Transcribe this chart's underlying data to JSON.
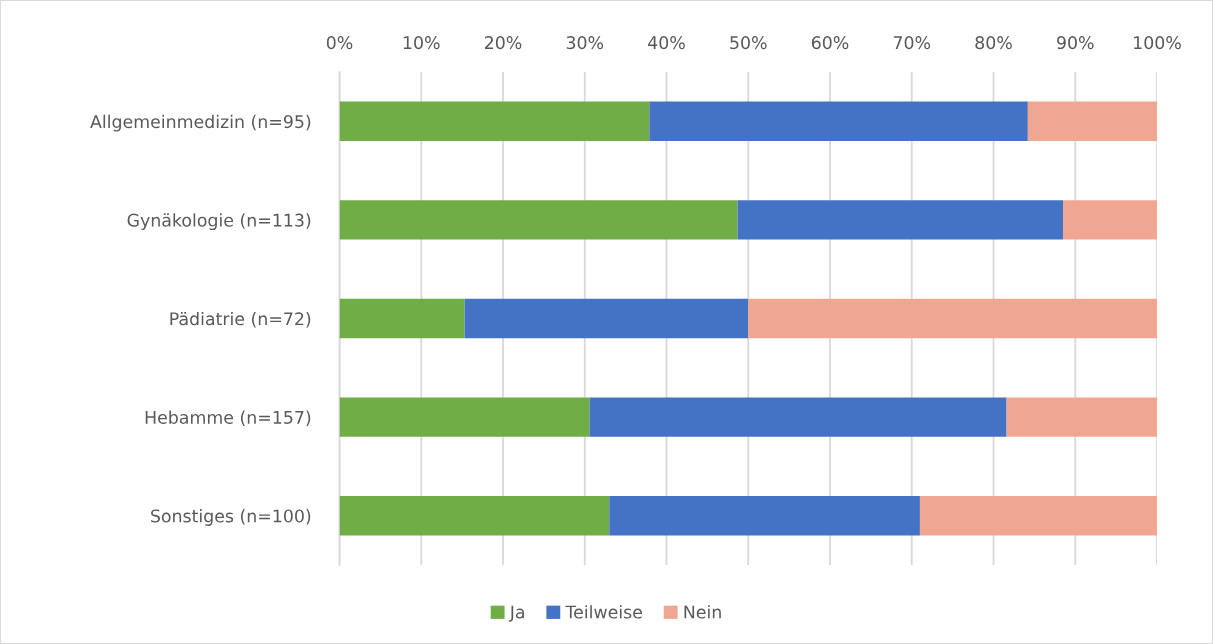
{
  "chart_data": {
    "type": "bar",
    "orientation": "horizontal",
    "stacked": true,
    "categories": [
      "Allgemeinmedizin (n=95)",
      "Gynäkologie (n=113)",
      "Pädiatrie (n=72)",
      "Hebamme (n=157)",
      "Sonstiges (n=100)"
    ],
    "series": [
      {
        "name": "Ja",
        "color": "#70ad47",
        "values": [
          37.9,
          48.7,
          15.3,
          30.6,
          33.0
        ]
      },
      {
        "name": "Teilweise",
        "color": "#4472c4",
        "values": [
          46.3,
          39.8,
          34.7,
          51.0,
          38.0
        ]
      },
      {
        "name": "Nein",
        "color": "#f0a792",
        "values": [
          15.8,
          11.5,
          50.0,
          18.5,
          29.0
        ]
      }
    ],
    "xlim": [
      0,
      100
    ],
    "xticks": [
      {
        "value": 0,
        "label": "0%"
      },
      {
        "value": 10,
        "label": "10%"
      },
      {
        "value": 20,
        "label": "20%"
      },
      {
        "value": 30,
        "label": "30%"
      },
      {
        "value": 40,
        "label": "40%"
      },
      {
        "value": 50,
        "label": "50%"
      },
      {
        "value": 60,
        "label": "60%"
      },
      {
        "value": 70,
        "label": "70%"
      },
      {
        "value": 80,
        "label": "80%"
      },
      {
        "value": 90,
        "label": "90%"
      },
      {
        "value": 100,
        "label": "100%"
      }
    ],
    "grid": "x",
    "legend": "bottom"
  }
}
